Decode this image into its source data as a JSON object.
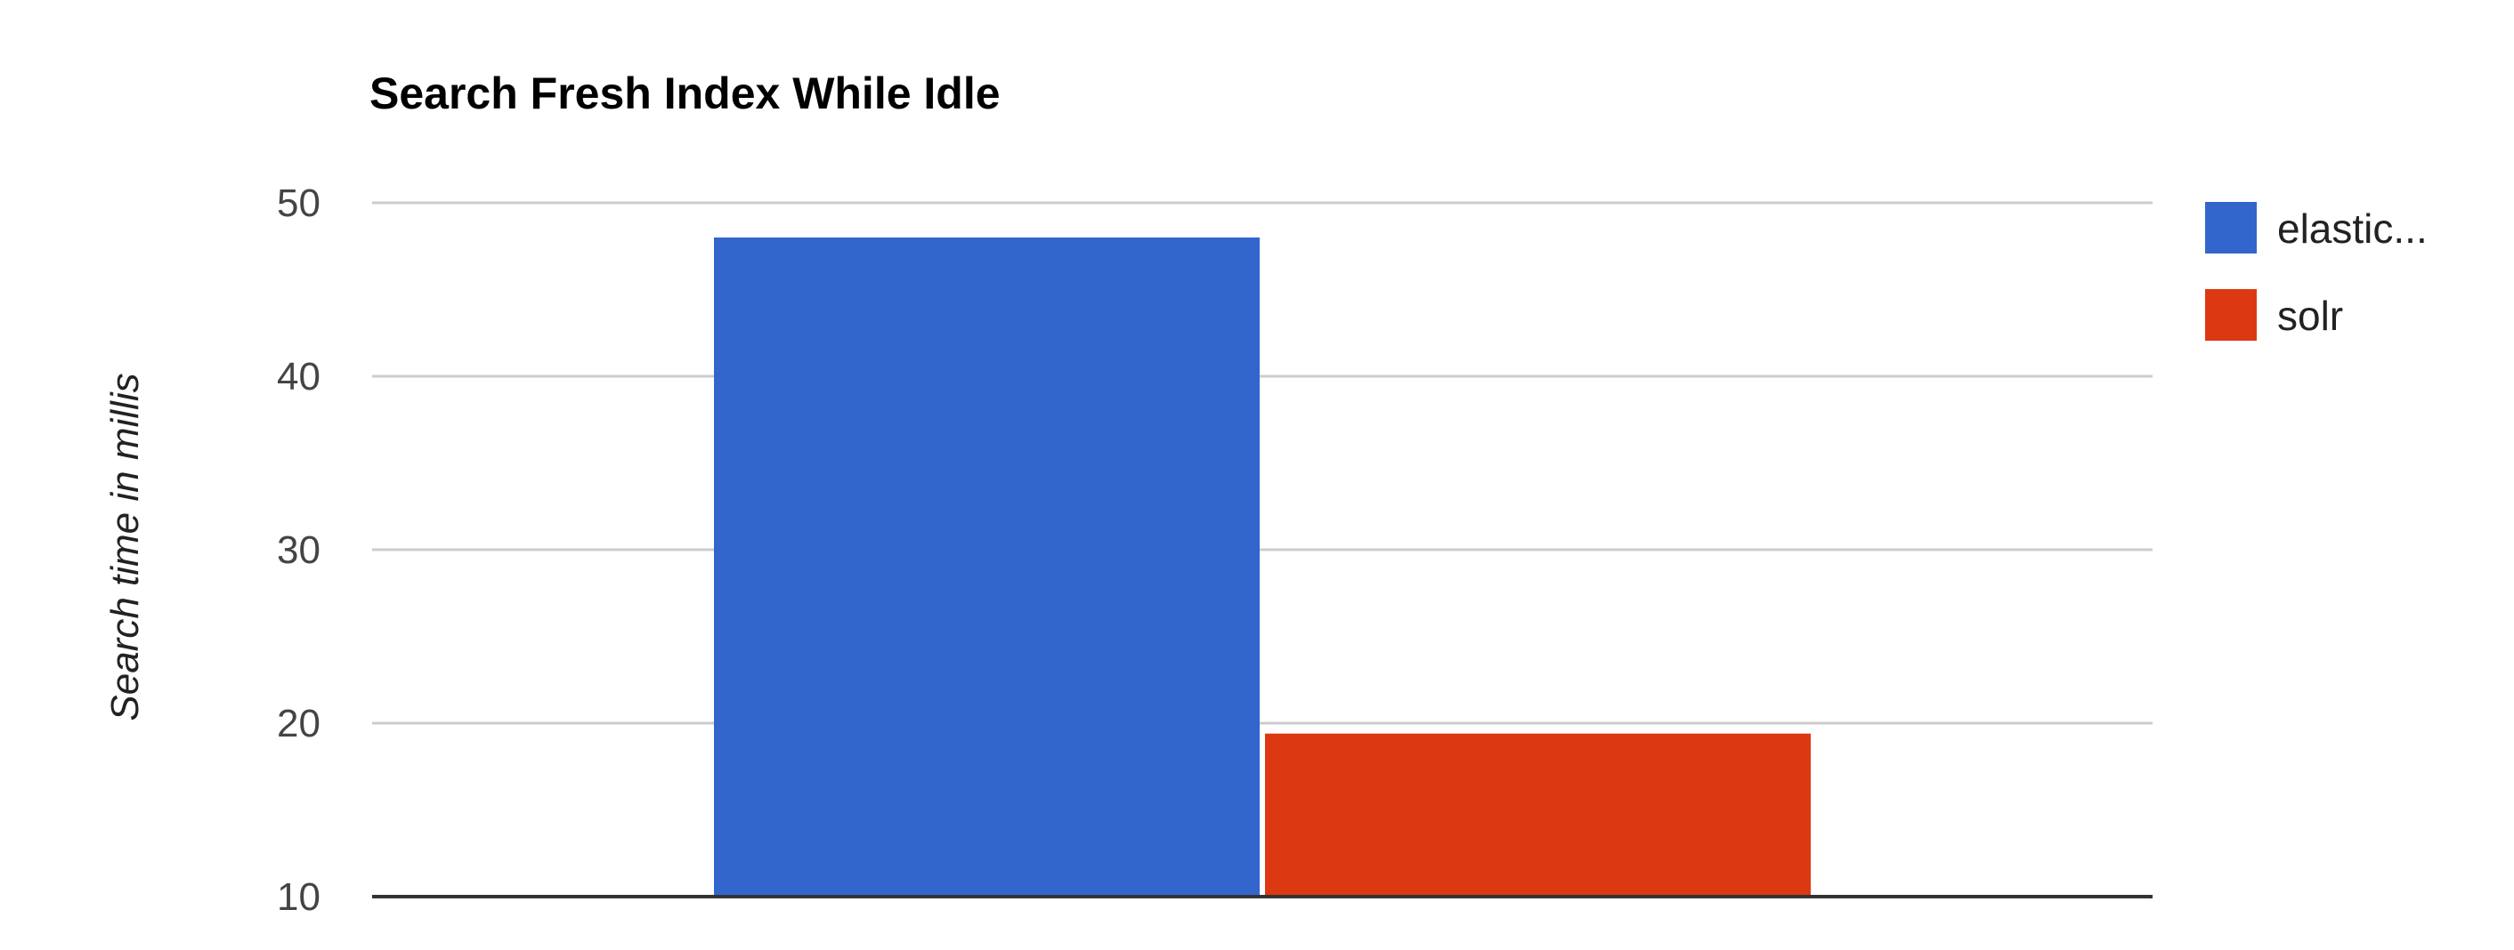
{
  "chart_data": {
    "type": "bar",
    "title": "Search Fresh Index While Idle",
    "xlabel": "",
    "ylabel": "Search time in millis",
    "ylim": [
      10,
      50
    ],
    "yticks": [
      50,
      40,
      30,
      20,
      10
    ],
    "grid": true,
    "legend_position": "right",
    "categories": [
      ""
    ],
    "series": [
      {
        "name": "elastic...",
        "values": [
          48
        ],
        "color": "#3366cc"
      },
      {
        "name": "solr",
        "values": [
          19.4
        ],
        "color": "#dc3912"
      }
    ]
  }
}
